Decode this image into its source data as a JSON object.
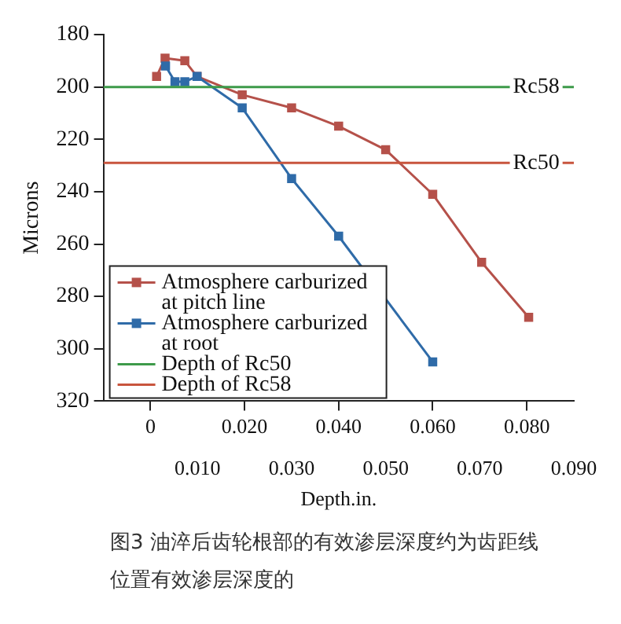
{
  "chart_data": {
    "type": "line",
    "xlabel": "Depth.in.",
    "ylabel": "Microns",
    "xlim": [
      -0.01,
      0.09
    ],
    "xticks": [
      {
        "value": 0,
        "label": "0"
      },
      {
        "value": 0.02,
        "label": "0.020"
      },
      {
        "value": 0.04,
        "label": "0.040"
      },
      {
        "value": 0.06,
        "label": "0.060"
      },
      {
        "value": 0.08,
        "label": "0.080"
      }
    ],
    "x2lim": [
      -0.01,
      0.09
    ],
    "x2ticks": [
      {
        "value": 0.01,
        "label": "0.010"
      },
      {
        "value": 0.03,
        "label": "0.030"
      },
      {
        "value": 0.05,
        "label": "0.050"
      },
      {
        "value": 0.07,
        "label": "0.070"
      },
      {
        "value": 0.09,
        "label": "0.090"
      }
    ],
    "ylim": [
      320,
      180
    ],
    "yticks": [
      180,
      200,
      220,
      240,
      260,
      280,
      300,
      320
    ],
    "marker": "square",
    "legend": "bottom left",
    "grid": false,
    "series": [
      {
        "name": "Atmosphere carburized at pitch line",
        "color": "#b5514a",
        "x": [
          0.0013,
          0.0031,
          0.0073,
          0.0099,
          0.0195,
          0.03,
          0.04,
          0.05,
          0.06,
          0.0704,
          0.0804
        ],
        "values": [
          196,
          189,
          190,
          196,
          203,
          208,
          215,
          224,
          241,
          267,
          288
        ]
      },
      {
        "name": "Atmosphere carburized at root",
        "color": "#2f6ba8",
        "x": [
          0.0032,
          0.0052,
          0.0073,
          0.0099,
          0.0195,
          0.03,
          0.04,
          0.06
        ],
        "values": [
          192,
          198,
          198,
          196,
          208,
          235,
          257,
          305
        ]
      },
      {
        "name": "Depth of Rc50",
        "color": "#3d9a4a",
        "marker": "none",
        "x": [
          -0.01,
          0.09
        ],
        "values": [
          200,
          200
        ]
      },
      {
        "name": "Depth of Rc58",
        "color": "#c8553d",
        "marker": "none",
        "x": [
          -0.01,
          0.09
        ],
        "values": [
          229,
          229
        ]
      }
    ],
    "annotations": [
      {
        "text": "Rc58",
        "x": 0.082,
        "y": 200
      },
      {
        "text": "Rc50",
        "x": 0.082,
        "y": 229
      },
      "图3  油淬后齿轮根部的有效渗层深度约为齿距线位置有效渗层深度的"
    ]
  }
}
